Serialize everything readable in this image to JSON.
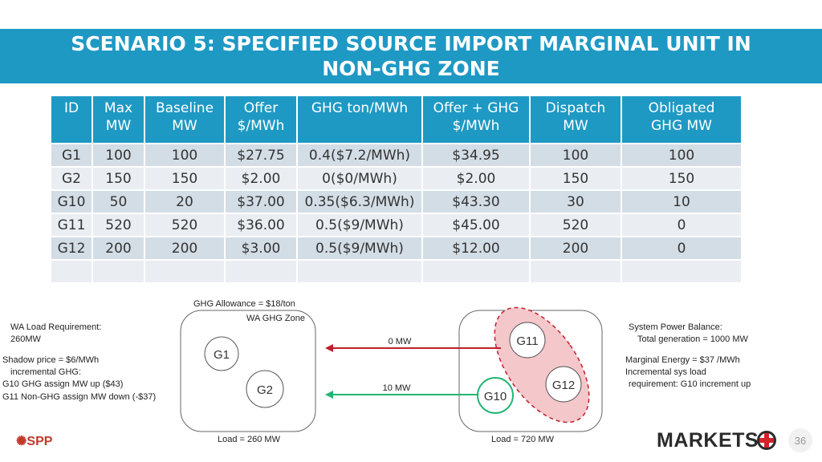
{
  "title": {
    "line1": "SCENARIO 5: SPECIFIED SOURCE IMPORT MARGINAL UNIT IN",
    "line2": "NON-GHG ZONE"
  },
  "table": {
    "headers": [
      {
        "l1": "ID",
        "l2": ""
      },
      {
        "l1": "Max",
        "l2": "MW"
      },
      {
        "l1": "Baseline",
        "l2": "MW"
      },
      {
        "l1": "Offer",
        "l2": "$/MWh"
      },
      {
        "l1": "GHG ton/MWh",
        "l2": ""
      },
      {
        "l1": "Offer + GHG",
        "l2": "$/MWh"
      },
      {
        "l1": "Dispatch",
        "l2": "MW"
      },
      {
        "l1": "Obligated",
        "l2": "GHG MW"
      }
    ],
    "rows": [
      [
        "G1",
        "100",
        "100",
        "$27.75",
        "0.4($7.2/MWh)",
        "$34.95",
        "100",
        "100"
      ],
      [
        "G2",
        "150",
        "150",
        "$2.00",
        "0($0/MWh)",
        "$2.00",
        "150",
        "150"
      ],
      [
        "G10",
        "50",
        "20",
        "$37.00",
        "0.35($6.3/MWh)",
        "$43.30",
        "30",
        "10"
      ],
      [
        "G11",
        "520",
        "520",
        "$36.00",
        "0.5($9/MWh)",
        "$45.00",
        "520",
        "0"
      ],
      [
        "G12",
        "200",
        "200",
        "$3.00",
        "0.5($9/MWh)",
        "$12.00",
        "200",
        "0"
      ],
      [
        "",
        "",
        "",
        "",
        "",
        "",
        "",
        ""
      ]
    ]
  },
  "diagram": {
    "ghg_allowance": "GHG Allowance = $18/ton",
    "wa_zone_label": "WA GHG Zone",
    "wa_load": "Load = 260 MW",
    "other_load": "Load = 720 MW",
    "flow_top": "0 MW",
    "flow_bottom": "10 MW",
    "nodes": {
      "g1": "G1",
      "g2": "G2",
      "g10": "G10",
      "g11": "G11",
      "g12": "G12"
    },
    "colors": {
      "red_arrow": "#c0202b",
      "green_arrow": "#22b573",
      "marginal_zone_fill": "#f4c7cb",
      "marginal_zone_border": "#c0202b"
    }
  },
  "left_notes": {
    "line1": "WA Load Requirement:",
    "line2": "260MW",
    "line3": "Shadow price = $6/MWh",
    "line4": "incremental GHG:",
    "line5": "G10 GHG assign MW up ($43)",
    "line6": "G11 Non-GHG assign MW down (-$37)"
  },
  "right_notes": {
    "line1": "System Power Balance:",
    "line2": "Total generation = 1000 MW",
    "line3": "Marginal Energy = $37 /MWh",
    "line4": "Incremental sys load",
    "line5": "requirement: G10 increment up"
  },
  "footer": {
    "spp_logo": "SPP",
    "markets_logo": "MARKETS",
    "page_number": "36"
  },
  "colors": {
    "accent": "#1e99c4",
    "row_odd": "#d3dde6",
    "row_even": "#eaeef2"
  }
}
